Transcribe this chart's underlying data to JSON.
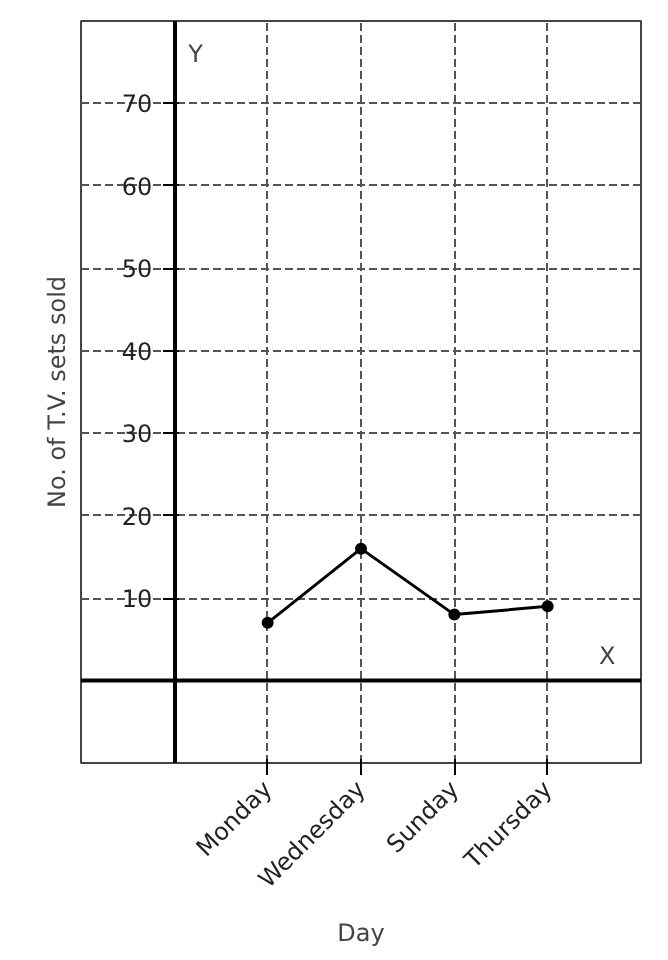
{
  "chart_data": {
    "type": "line",
    "xlabel": "Day",
    "ylabel": "No. of T.V. sets sold",
    "annotations": [
      "Y",
      "X"
    ],
    "categories": [
      "Monday",
      "Wednesday",
      "Sunday",
      "Thursday"
    ],
    "values": [
      7,
      16,
      8,
      9
    ],
    "color": "#000000",
    "marker": "circle",
    "line_style": "solid",
    "ylim": [
      -10,
      80
    ],
    "yticks": [
      10,
      20,
      30,
      40,
      50,
      60,
      70
    ],
    "grid": true
  }
}
